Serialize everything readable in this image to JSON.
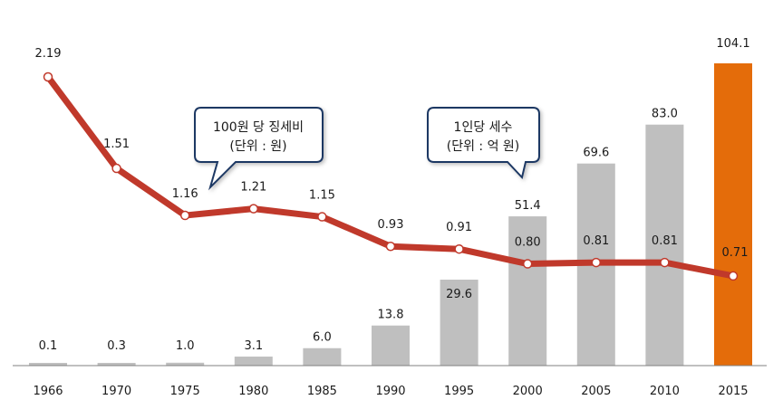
{
  "chart_data": {
    "type": "bar",
    "categories": [
      "1966",
      "1970",
      "1975",
      "1980",
      "1985",
      "1990",
      "1995",
      "2000",
      "2005",
      "2010",
      "2015"
    ],
    "series": [
      {
        "name": "1인당 세수 (단위 : 억 원)",
        "type": "bar",
        "values": [
          0.1,
          0.3,
          1.0,
          3.1,
          6.0,
          13.8,
          29.6,
          51.4,
          69.6,
          83.0,
          104.1
        ],
        "value_labels": [
          "0.1",
          "0.3",
          "1.0",
          "3.1",
          "6.0",
          "13.8",
          "29.6",
          "51.4",
          "69.6",
          "83.0",
          "104.1"
        ],
        "color": "#bfbfbf",
        "highlight_color": "#e46c0a"
      },
      {
        "name": "100원 당 징세비 (단위 : 원)",
        "type": "line",
        "values": [
          2.19,
          1.51,
          1.16,
          1.21,
          1.15,
          0.93,
          0.91,
          0.8,
          0.81,
          0.81,
          0.71
        ],
        "value_labels": [
          "2.19",
          "1.51",
          "1.16",
          "1.21",
          "1.15",
          "0.93",
          "0.91",
          "0.80",
          "0.81",
          "0.81",
          "0.71"
        ],
        "color": "#c0392b"
      }
    ],
    "callouts": [
      {
        "line1": "100원 당 징세비",
        "line2": "(단위 : 원)"
      },
      {
        "line1": "1인당 세수",
        "line2": "(단위 : 억 원)"
      }
    ]
  }
}
